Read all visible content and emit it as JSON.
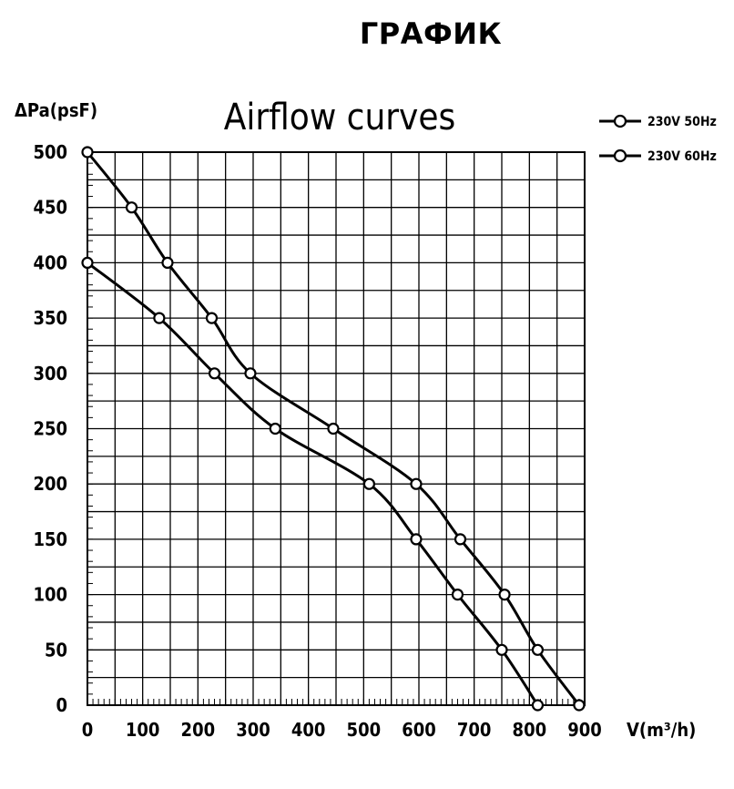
{
  "page": {
    "heading": "ГРАФИК"
  },
  "chart_data": {
    "type": "line",
    "title": "Airflow curves",
    "xlabel": "V(m³/h)",
    "ylabel": "ΔPa(psF)",
    "xlim": [
      0,
      900
    ],
    "ylim": [
      0,
      500
    ],
    "x_ticks": [
      "0",
      "100",
      "200",
      "300",
      "400",
      "500",
      "600",
      "700",
      "800",
      "900"
    ],
    "y_ticks": [
      "0",
      "50",
      "100",
      "150",
      "200",
      "250",
      "300",
      "350",
      "400",
      "450",
      "500"
    ],
    "grid": true,
    "legend_position": "top-right",
    "series": [
      {
        "name": "230V 50Hz",
        "x": [
          0,
          130,
          230,
          340,
          510,
          595,
          670,
          750,
          815
        ],
        "y": [
          400,
          350,
          300,
          250,
          200,
          150,
          100,
          50,
          0
        ]
      },
      {
        "name": "230V 60Hz",
        "x": [
          0,
          80,
          145,
          225,
          295,
          445,
          595,
          675,
          755,
          815,
          890
        ],
        "y": [
          500,
          450,
          400,
          350,
          300,
          250,
          200,
          150,
          100,
          50,
          0
        ]
      }
    ],
    "series_color": "#000000"
  }
}
